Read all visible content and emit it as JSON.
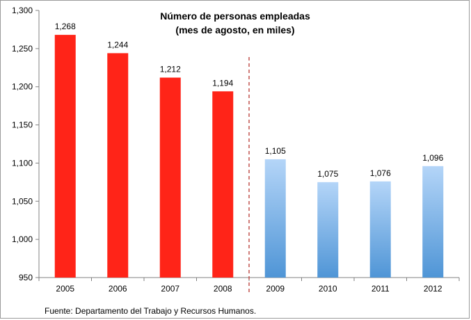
{
  "chart_data": {
    "type": "bar",
    "title": "Número de personas empleadas",
    "subtitle": "(mes de agosto, en miles)",
    "categories": [
      "2005",
      "2006",
      "2007",
      "2008",
      "2009",
      "2010",
      "2011",
      "2012"
    ],
    "values": [
      1268,
      1244,
      1212,
      1194,
      1105,
      1075,
      1076,
      1096
    ],
    "value_labels": [
      "1,268",
      "1,244",
      "1,212",
      "1,194",
      "1,105",
      "1,075",
      "1,076",
      "1,096"
    ],
    "ylim": [
      950,
      1300
    ],
    "yticks": [
      950,
      1000,
      1050,
      1100,
      1150,
      1200,
      1250,
      1300
    ],
    "ytick_labels": [
      "950",
      "1,000",
      "1,050",
      "1,100",
      "1,150",
      "1,200",
      "1,250",
      "1,300"
    ],
    "grid": false,
    "legend": "none",
    "colors": {
      "period_1": "#ff2418",
      "period_2_top": "#b4d5f8",
      "period_2_bottom": "#4f95d6",
      "divider": "#c0504d"
    },
    "period_1_count": 4,
    "divider_after_category": "2008"
  },
  "source_note": "Fuente: Departamento del Trabajo y Recursos Humanos."
}
